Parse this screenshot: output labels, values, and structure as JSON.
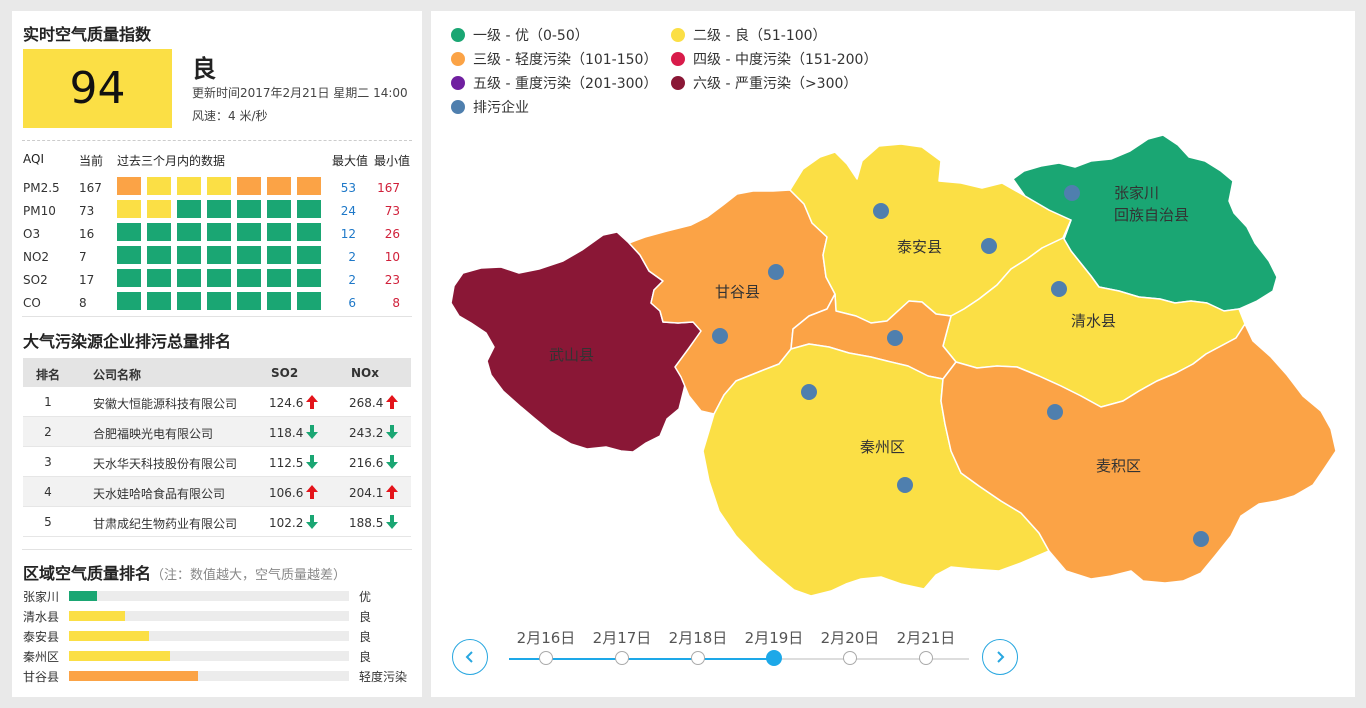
{
  "left": {
    "realtime_title": "实时空气质量指数",
    "aqi_value": "94",
    "aqi_level": "良",
    "updated": "更新时间2017年2月21日 星期二 14:00",
    "wind": "风速：4 米/秒",
    "table_head": {
      "aqi": "AQI",
      "current": "当前",
      "history": "过去三个月内的数据",
      "max": "最大值",
      "min": "最小值"
    },
    "pollutants": [
      {
        "name": "PM2.5",
        "current": "167",
        "max": "53",
        "min": "167",
        "cells": [
          "orange",
          "yellow",
          "yellow",
          "yellow",
          "orange",
          "orange",
          "orange"
        ]
      },
      {
        "name": "PM10",
        "current": "73",
        "max": "24",
        "min": "73",
        "cells": [
          "yellow",
          "yellow",
          "green",
          "green",
          "green",
          "green",
          "green"
        ]
      },
      {
        "name": "O3",
        "current": "16",
        "max": "12",
        "min": "26",
        "cells": [
          "green",
          "green",
          "green",
          "green",
          "green",
          "green",
          "green"
        ]
      },
      {
        "name": "NO2",
        "current": "7",
        "max": "2",
        "min": "10",
        "cells": [
          "green",
          "green",
          "green",
          "green",
          "green",
          "green",
          "green"
        ]
      },
      {
        "name": "SO2",
        "current": "17",
        "max": "2",
        "min": "23",
        "cells": [
          "green",
          "green",
          "green",
          "green",
          "green",
          "green",
          "green"
        ]
      },
      {
        "name": "CO",
        "current": "8",
        "max": "6",
        "min": "8",
        "cells": [
          "green",
          "green",
          "green",
          "green",
          "green",
          "green",
          "green"
        ]
      }
    ],
    "rank_title": "大气污染源企业排污总量排名",
    "rank_head": {
      "idx": "排名",
      "name": "公司名称",
      "so2": "SO2",
      "nox": "NOx"
    },
    "companies": [
      {
        "idx": "1",
        "name": "安徽大恒能源科技有限公司",
        "so2": "124.6",
        "so2_trend": "up",
        "nox": "268.4",
        "nox_trend": "up"
      },
      {
        "idx": "2",
        "name": "合肥福映光电有限公司",
        "so2": "118.4",
        "so2_trend": "down",
        "nox": "243.2",
        "nox_trend": "down"
      },
      {
        "idx": "3",
        "name": "天水华天科技股份有限公司",
        "so2": "112.5",
        "so2_trend": "down",
        "nox": "216.6",
        "nox_trend": "down"
      },
      {
        "idx": "4",
        "name": "天水娃哈哈食品有限公司",
        "so2": "106.6",
        "so2_trend": "up",
        "nox": "204.1",
        "nox_trend": "up"
      },
      {
        "idx": "5",
        "name": "甘肃成纪生物药业有限公司",
        "so2": "102.2",
        "so2_trend": "down",
        "nox": "188.5",
        "nox_trend": "down"
      }
    ],
    "region_title": "区域空气质量排名",
    "region_note": "（注：数值越大，空气质量越差）",
    "regions": [
      {
        "name": "张家川",
        "level": "优",
        "ratio": 0.1,
        "color": "#1aa673"
      },
      {
        "name": "清水县",
        "level": "良",
        "ratio": 0.2,
        "color": "#fbdf45"
      },
      {
        "name": "泰安县",
        "level": "良",
        "ratio": 0.285,
        "color": "#fbdf45"
      },
      {
        "name": "秦州区",
        "level": "良",
        "ratio": 0.36,
        "color": "#fbdf45"
      },
      {
        "name": "甘谷县",
        "level": "轻度污染",
        "ratio": 0.46,
        "color": "#fba346"
      }
    ]
  },
  "legend": [
    {
      "label": "一级 - 优（0-50）",
      "color": "#1aa673"
    },
    {
      "label": "二级 - 良（51-100）",
      "color": "#fbdf45"
    },
    {
      "label": "三级 - 轻度污染（101-150）",
      "color": "#fba346"
    },
    {
      "label": "四级 - 中度污染（151-200）",
      "color": "#d81b4a"
    },
    {
      "label": "五级 - 重度污染（201-300）",
      "color": "#7020a0"
    },
    {
      "label": "六级 - 严重污染（>300）",
      "color": "#8a1736"
    },
    {
      "label": "排污企业",
      "color": "#4f7fae"
    }
  ],
  "map": {
    "regions": [
      {
        "name": "武山县",
        "level": "六级 - 严重污染",
        "color": "#8a1736"
      },
      {
        "name": "甘谷县",
        "level": "三级 - 轻度污染",
        "color": "#fba346"
      },
      {
        "name": "泰安县",
        "level": "二级 - 良",
        "color": "#fbdf45"
      },
      {
        "name": "张家川",
        "name_line2": "回族自治县",
        "level": "一级 - 优",
        "color": "#1aa673"
      },
      {
        "name": "清水县",
        "level": "二级 - 良",
        "color": "#fbdf45"
      },
      {
        "name": "秦州区",
        "level": "二级 - 良",
        "color": "#fbdf45"
      },
      {
        "name": "麦积区",
        "level": "三级 - 轻度污染",
        "color": "#fba346"
      }
    ],
    "company_dot_color": "#4f7fae"
  },
  "timeline": {
    "dates": [
      "2月16日",
      "2月17日",
      "2月18日",
      "2月19日",
      "2月20日",
      "2月21日"
    ],
    "active_index": 3,
    "prev_icon": "chevron-left-icon",
    "next_icon": "chevron-right-icon",
    "accent": "#1da8e8"
  }
}
